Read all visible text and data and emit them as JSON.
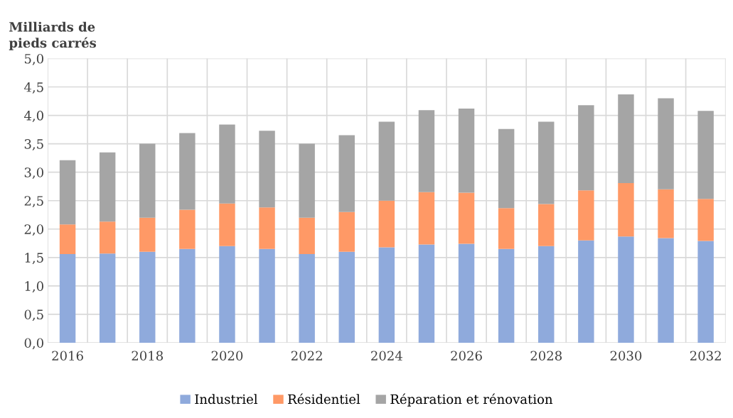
{
  "chart_data": {
    "type": "bar",
    "stacked": true,
    "ylabel": "Milliards de\npieds carrés",
    "categories": [
      "2016",
      null,
      "2018",
      null,
      "2020",
      null,
      "2022",
      null,
      "2024",
      null,
      "2026",
      null,
      "2028",
      null,
      "2030",
      null,
      "2032"
    ],
    "series": [
      {
        "name": "Industriel",
        "color": "#8faadc",
        "values": [
          1.56,
          1.57,
          1.6,
          1.65,
          1.7,
          1.65,
          1.56,
          1.6,
          1.68,
          1.73,
          1.74,
          1.65,
          1.7,
          1.8,
          1.87,
          1.84,
          1.79
        ]
      },
      {
        "name": "Résidentiel",
        "color": "#ff9966",
        "values": [
          0.52,
          0.56,
          0.6,
          0.69,
          0.75,
          0.73,
          0.64,
          0.7,
          0.82,
          0.92,
          0.9,
          0.72,
          0.74,
          0.88,
          0.94,
          0.86,
          0.74
        ]
      },
      {
        "name": "Réparation et rénovation",
        "color": "#a5a5a5",
        "values": [
          1.13,
          1.22,
          1.3,
          1.35,
          1.39,
          1.35,
          1.3,
          1.35,
          1.39,
          1.44,
          1.48,
          1.39,
          1.45,
          1.5,
          1.56,
          1.6,
          1.55
        ]
      }
    ],
    "ylim": [
      0,
      5
    ],
    "yticks": [
      {
        "value": 0,
        "label": "0,0"
      },
      {
        "value": 0.5,
        "label": "0,5"
      },
      {
        "value": 1,
        "label": "1,0"
      },
      {
        "value": 1.5,
        "label": "1,5"
      },
      {
        "value": 2,
        "label": "2,0"
      },
      {
        "value": 2.5,
        "label": "2,5"
      },
      {
        "value": 3,
        "label": "3,0"
      },
      {
        "value": 3.5,
        "label": "3,5"
      },
      {
        "value": 4,
        "label": "4,0"
      },
      {
        "value": 4.5,
        "label": "4,5"
      },
      {
        "value": 5,
        "label": "5,0"
      }
    ],
    "grid": true,
    "legend": "bottom"
  }
}
